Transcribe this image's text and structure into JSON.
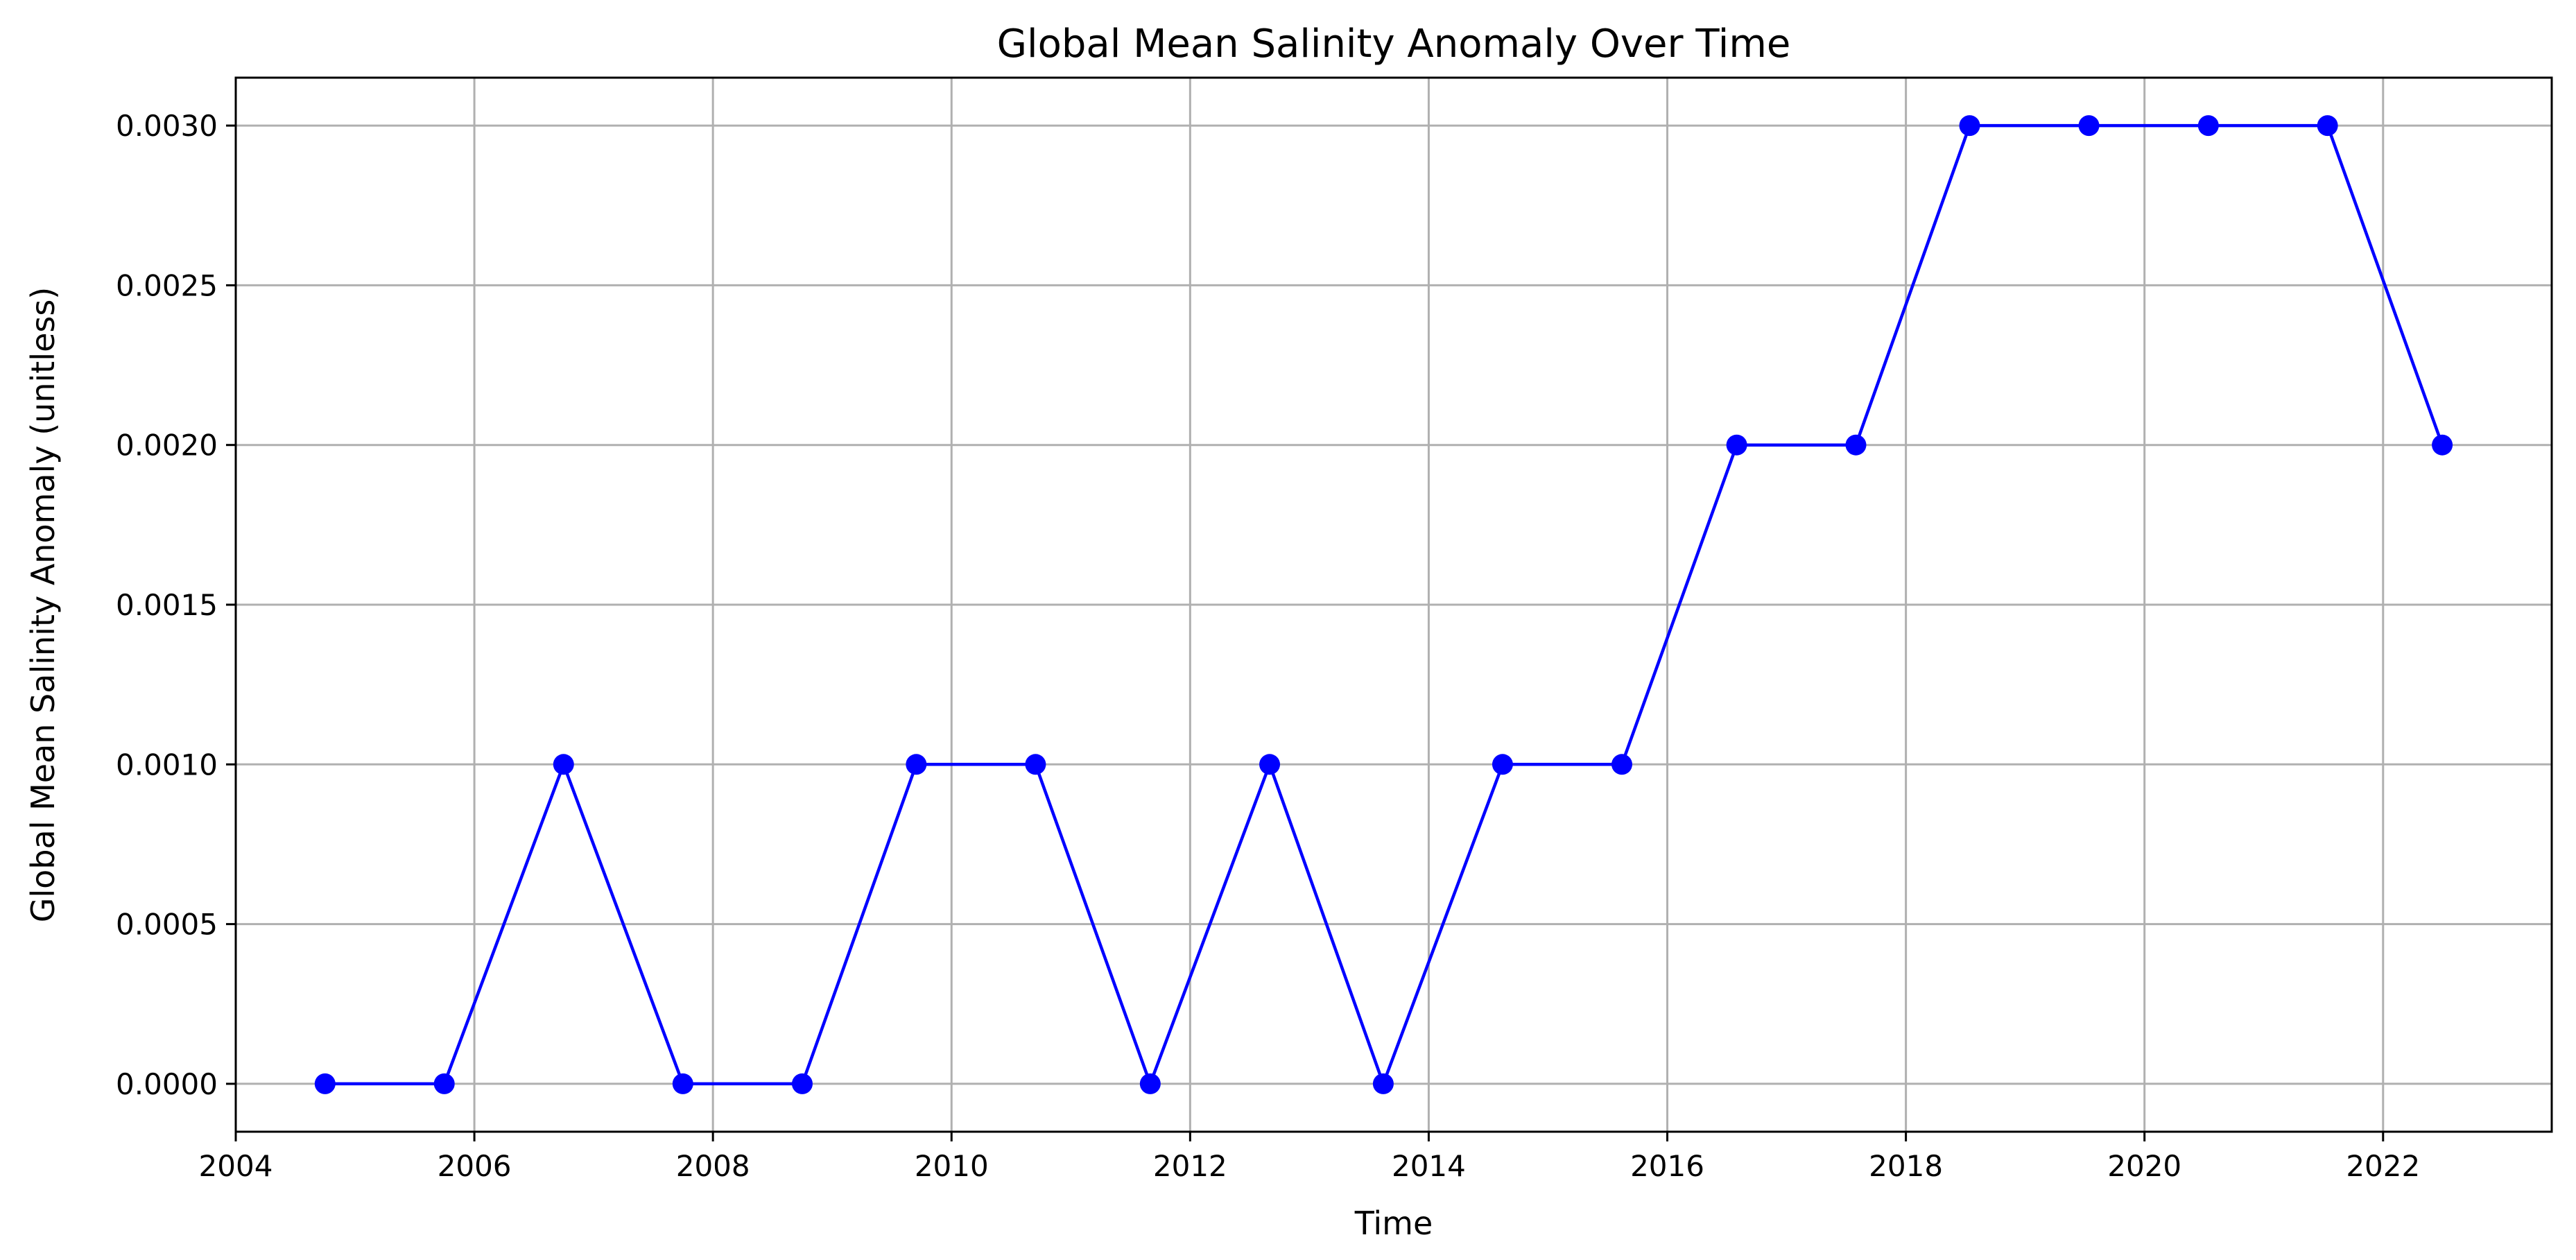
{
  "chart_data": {
    "type": "line",
    "title": "Global Mean Salinity Anomaly Over Time",
    "xlabel": "Time",
    "ylabel": "Global Mean Salinity Anomaly (unitless)",
    "xlim": [
      "2004-01-01",
      "2023-06-01"
    ],
    "ylim": [
      -0.00015,
      0.00315
    ],
    "x_ticks": [
      {
        "value": "2004-01-01",
        "label": "2004"
      },
      {
        "value": "2006-01-01",
        "label": "2006"
      },
      {
        "value": "2008-01-01",
        "label": "2008"
      },
      {
        "value": "2010-01-01",
        "label": "2010"
      },
      {
        "value": "2012-01-01",
        "label": "2012"
      },
      {
        "value": "2014-01-01",
        "label": "2014"
      },
      {
        "value": "2016-01-01",
        "label": "2016"
      },
      {
        "value": "2018-01-01",
        "label": "2018"
      },
      {
        "value": "2020-01-01",
        "label": "2020"
      },
      {
        "value": "2022-01-01",
        "label": "2022"
      }
    ],
    "y_ticks": [
      {
        "value": 0.0,
        "label": "0.0000"
      },
      {
        "value": 0.0005,
        "label": "0.0005"
      },
      {
        "value": 0.001,
        "label": "0.0010"
      },
      {
        "value": 0.0015,
        "label": "0.0015"
      },
      {
        "value": 0.002,
        "label": "0.0020"
      },
      {
        "value": 0.0025,
        "label": "0.0025"
      },
      {
        "value": 0.003,
        "label": "0.0030"
      }
    ],
    "grid": true,
    "series": [
      {
        "color": "#0000ff",
        "marker": "circle",
        "points": [
          {
            "x": "2004-10-01",
            "y": 0.0
          },
          {
            "x": "2005-10-01",
            "y": 0.0
          },
          {
            "x": "2006-10-01",
            "y": 0.001
          },
          {
            "x": "2007-10-01",
            "y": 0.0
          },
          {
            "x": "2008-10-01",
            "y": 0.0
          },
          {
            "x": "2009-09-15",
            "y": 0.001
          },
          {
            "x": "2010-09-15",
            "y": 0.001
          },
          {
            "x": "2011-09-01",
            "y": 0.0
          },
          {
            "x": "2012-09-01",
            "y": 0.001
          },
          {
            "x": "2013-08-15",
            "y": 0.0
          },
          {
            "x": "2014-08-15",
            "y": 0.001
          },
          {
            "x": "2015-08-15",
            "y": 0.001
          },
          {
            "x": "2016-08-01",
            "y": 0.002
          },
          {
            "x": "2017-08-01",
            "y": 0.002
          },
          {
            "x": "2018-07-15",
            "y": 0.003
          },
          {
            "x": "2019-07-15",
            "y": 0.003
          },
          {
            "x": "2020-07-15",
            "y": 0.003
          },
          {
            "x": "2021-07-15",
            "y": 0.003
          },
          {
            "x": "2022-07-01",
            "y": 0.002
          }
        ]
      }
    ]
  }
}
